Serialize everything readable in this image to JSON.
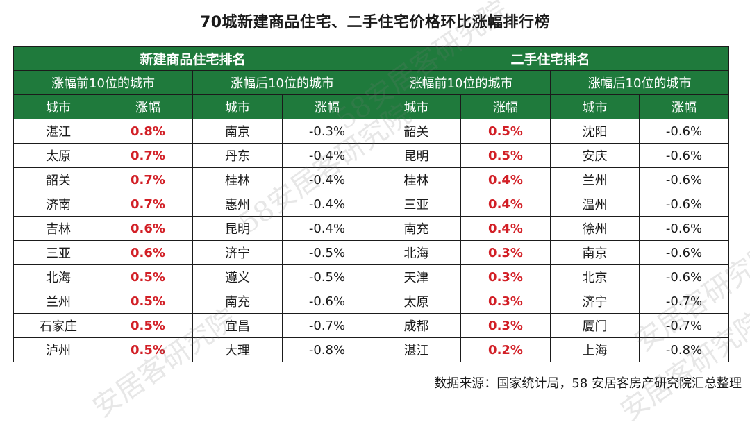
{
  "title": "70城新建商品住宅、二手住宅价格环比涨幅排行榜",
  "sections": {
    "new": "新建商品住宅排名",
    "second": "二手住宅排名"
  },
  "groups": {
    "top10": "涨幅前10位的城市",
    "bottom10": "涨幅后10位的城市"
  },
  "columns": {
    "city": "城市",
    "change": "涨幅"
  },
  "rows": [
    {
      "nt_city": "湛江",
      "nt_val": "0.8%",
      "nb_city": "南京",
      "nb_val": "-0.3%",
      "st_city": "韶关",
      "st_val": "0.5%",
      "sb_city": "沈阳",
      "sb_val": "-0.6%"
    },
    {
      "nt_city": "太原",
      "nt_val": "0.7%",
      "nb_city": "丹东",
      "nb_val": "-0.4%",
      "st_city": "昆明",
      "st_val": "0.5%",
      "sb_city": "安庆",
      "sb_val": "-0.6%"
    },
    {
      "nt_city": "韶关",
      "nt_val": "0.7%",
      "nb_city": "桂林",
      "nb_val": "-0.4%",
      "st_city": "桂林",
      "st_val": "0.4%",
      "sb_city": "兰州",
      "sb_val": "-0.6%"
    },
    {
      "nt_city": "济南",
      "nt_val": "0.7%",
      "nb_city": "惠州",
      "nb_val": "-0.4%",
      "st_city": "三亚",
      "st_val": "0.4%",
      "sb_city": "温州",
      "sb_val": "-0.6%"
    },
    {
      "nt_city": "吉林",
      "nt_val": "0.6%",
      "nb_city": "昆明",
      "nb_val": "-0.4%",
      "st_city": "南充",
      "st_val": "0.4%",
      "sb_city": "徐州",
      "sb_val": "-0.6%"
    },
    {
      "nt_city": "三亚",
      "nt_val": "0.6%",
      "nb_city": "济宁",
      "nb_val": "-0.5%",
      "st_city": "北海",
      "st_val": "0.3%",
      "sb_city": "南京",
      "sb_val": "-0.6%"
    },
    {
      "nt_city": "北海",
      "nt_val": "0.5%",
      "nb_city": "遵义",
      "nb_val": "-0.5%",
      "st_city": "天津",
      "st_val": "0.3%",
      "sb_city": "北京",
      "sb_val": "-0.6%"
    },
    {
      "nt_city": "兰州",
      "nt_val": "0.5%",
      "nb_city": "南充",
      "nb_val": "-0.6%",
      "st_city": "太原",
      "st_val": "0.3%",
      "sb_city": "济宁",
      "sb_val": "-0.7%"
    },
    {
      "nt_city": "石家庄",
      "nt_val": "0.5%",
      "nb_city": "宜昌",
      "nb_val": "-0.7%",
      "st_city": "成都",
      "st_val": "0.3%",
      "sb_city": "厦门",
      "sb_val": "-0.7%"
    },
    {
      "nt_city": "泸州",
      "nt_val": "0.5%",
      "nb_city": "大理",
      "nb_val": "-0.8%",
      "st_city": "湛江",
      "st_val": "0.2%",
      "sb_city": "上海",
      "sb_val": "-0.8%"
    }
  ],
  "source": "数据来源：国家统计局，58 安居客房产研究院汇总整理",
  "watermarks": [
    "58安居客研究院",
    "58安居客研究院",
    "安居客研究院",
    "安居客研究院",
    "安居客研究院"
  ],
  "colors": {
    "header_bg": "#1f7a3c",
    "up_text": "#d21f26"
  }
}
